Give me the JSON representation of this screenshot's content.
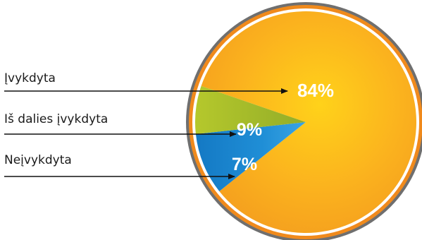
{
  "chart_data": {
    "type": "pie",
    "title": "",
    "slices": [
      {
        "name": "Įvykdyta",
        "value": 84,
        "label": "84%",
        "color": "#f7a51d"
      },
      {
        "name": "Iš dalies įvykdyta",
        "value": 9,
        "label": "9%",
        "color": "#1c86cf"
      },
      {
        "name": "Neįvykdyta",
        "value": 7,
        "label": "7%",
        "color": "#9fbd2c"
      }
    ],
    "rim_colors": {
      "outer": "#6f6f6f",
      "ring": "#f08a1c",
      "separator": "#ffffff"
    },
    "legend": "left, with arrows pointing to slices"
  }
}
